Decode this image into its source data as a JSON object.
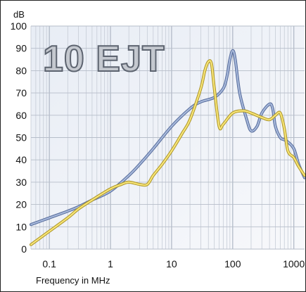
{
  "chart_data": {
    "type": "line",
    "title": "10 EJT",
    "ylabel": "dB",
    "xlabel": "Frequency in MHz",
    "xscale": "log",
    "xlim": [
      0.05,
      1500
    ],
    "ylim": [
      0,
      100
    ],
    "x_ticks": [
      0.1,
      1,
      10,
      100,
      1000
    ],
    "x_tick_labels": [
      "0.1",
      "1",
      "10",
      "100",
      "1000"
    ],
    "y_ticks": [
      0,
      10,
      20,
      30,
      40,
      50,
      60,
      70,
      80,
      90,
      100
    ],
    "grid": true,
    "legend": "none",
    "series": [
      {
        "color": "#8aa0cc",
        "x": [
          0.05,
          0.1,
          0.2,
          0.3,
          0.5,
          1,
          2,
          3,
          5,
          10,
          20,
          30,
          50,
          70,
          80,
          90,
          100,
          110,
          130,
          170,
          200,
          250,
          300,
          400,
          450,
          500,
          600,
          700,
          800,
          1000,
          1200,
          1500
        ],
        "y": [
          11,
          14,
          17,
          19,
          22,
          26,
          33,
          38,
          45,
          55,
          63,
          66,
          68,
          72,
          77,
          85,
          89,
          85,
          70,
          58,
          53,
          55,
          61,
          65,
          63,
          55,
          50,
          49,
          48,
          45,
          38,
          32
        ]
      },
      {
        "color": "#f0d84e",
        "x": [
          0.05,
          0.1,
          0.2,
          0.3,
          0.5,
          1,
          1.5,
          2,
          3,
          4,
          5,
          7,
          10,
          15,
          20,
          30,
          35,
          40,
          45,
          50,
          60,
          70,
          100,
          150,
          200,
          300,
          400,
          500,
          600,
          700,
          800,
          1000,
          1200,
          1500
        ],
        "y": [
          2,
          8,
          14,
          18,
          22,
          27,
          29,
          30,
          29,
          29,
          33,
          38,
          44,
          52,
          58,
          72,
          80,
          84,
          83,
          72,
          55,
          56,
          61,
          62,
          61,
          59,
          58,
          60,
          61,
          54,
          44,
          41,
          37,
          33
        ]
      }
    ]
  }
}
